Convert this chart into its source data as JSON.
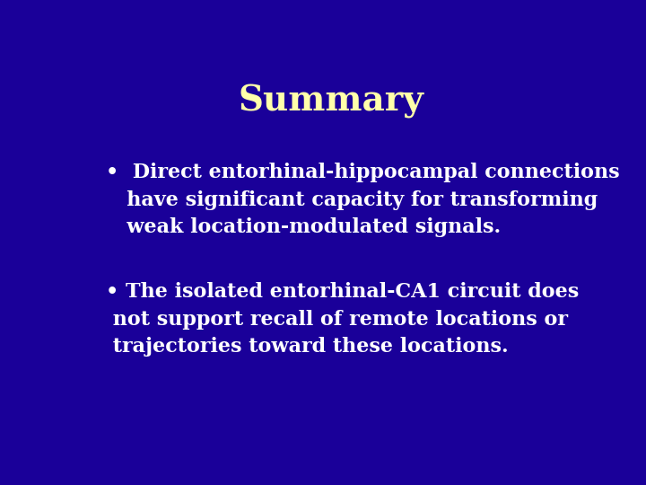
{
  "background_color": "#1a0099",
  "title": "Summary",
  "title_color": "#ffffaa",
  "title_fontsize": 28,
  "title_fontweight": "bold",
  "title_fontstyle": "normal",
  "bullet1_line1": "•  Direct entorhinal-hippocampal connections",
  "bullet1_line2": "   have significant capacity for transforming",
  "bullet1_line3": "   weak location-modulated signals.",
  "bullet2_line1": "• The isolated entorhinal-CA1 circuit does",
  "bullet2_line2": " not support recall of remote locations or",
  "bullet2_line3": " trajectories toward these locations.",
  "text_color": "#ffffff",
  "text_fontsize": 16,
  "text_fontweight": "bold"
}
